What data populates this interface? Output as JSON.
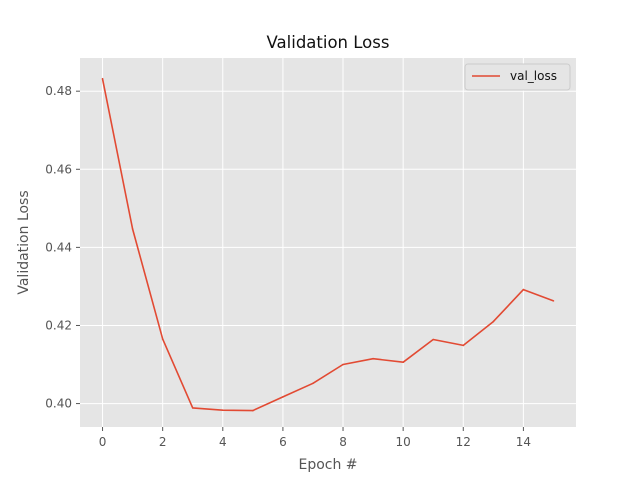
{
  "chart_data": {
    "type": "line",
    "title": "Validation Loss",
    "xlabel": "Epoch #",
    "ylabel": "Validation Loss",
    "xlim": [
      -0.75,
      15.75
    ],
    "ylim": [
      0.394,
      0.4885
    ],
    "grid": true,
    "legend_position": "top-right",
    "x_ticks": [
      0,
      2,
      4,
      6,
      8,
      10,
      12,
      14
    ],
    "y_ticks": [
      0.4,
      0.42,
      0.44,
      0.46,
      0.48
    ],
    "x_tick_labels": [
      "0",
      "2",
      "4",
      "6",
      "8",
      "10",
      "12",
      "14"
    ],
    "y_tick_labels": [
      "0.40",
      "0.42",
      "0.44",
      "0.46",
      "0.48"
    ],
    "series": [
      {
        "name": "val_loss",
        "color": "#E24A33",
        "x": [
          0,
          1,
          2,
          3,
          4,
          5,
          6,
          7,
          8,
          9,
          10,
          11,
          12,
          13,
          14,
          15
        ],
        "y": [
          0.4832,
          0.4447,
          0.4165,
          0.3989,
          0.3983,
          0.3982,
          0.4017,
          0.4052,
          0.41,
          0.4115,
          0.4106,
          0.4164,
          0.4149,
          0.421,
          0.4292,
          0.4263
        ]
      }
    ],
    "colors": {
      "plot_background": "#E5E5E5",
      "grid": "#FFFFFF"
    }
  }
}
